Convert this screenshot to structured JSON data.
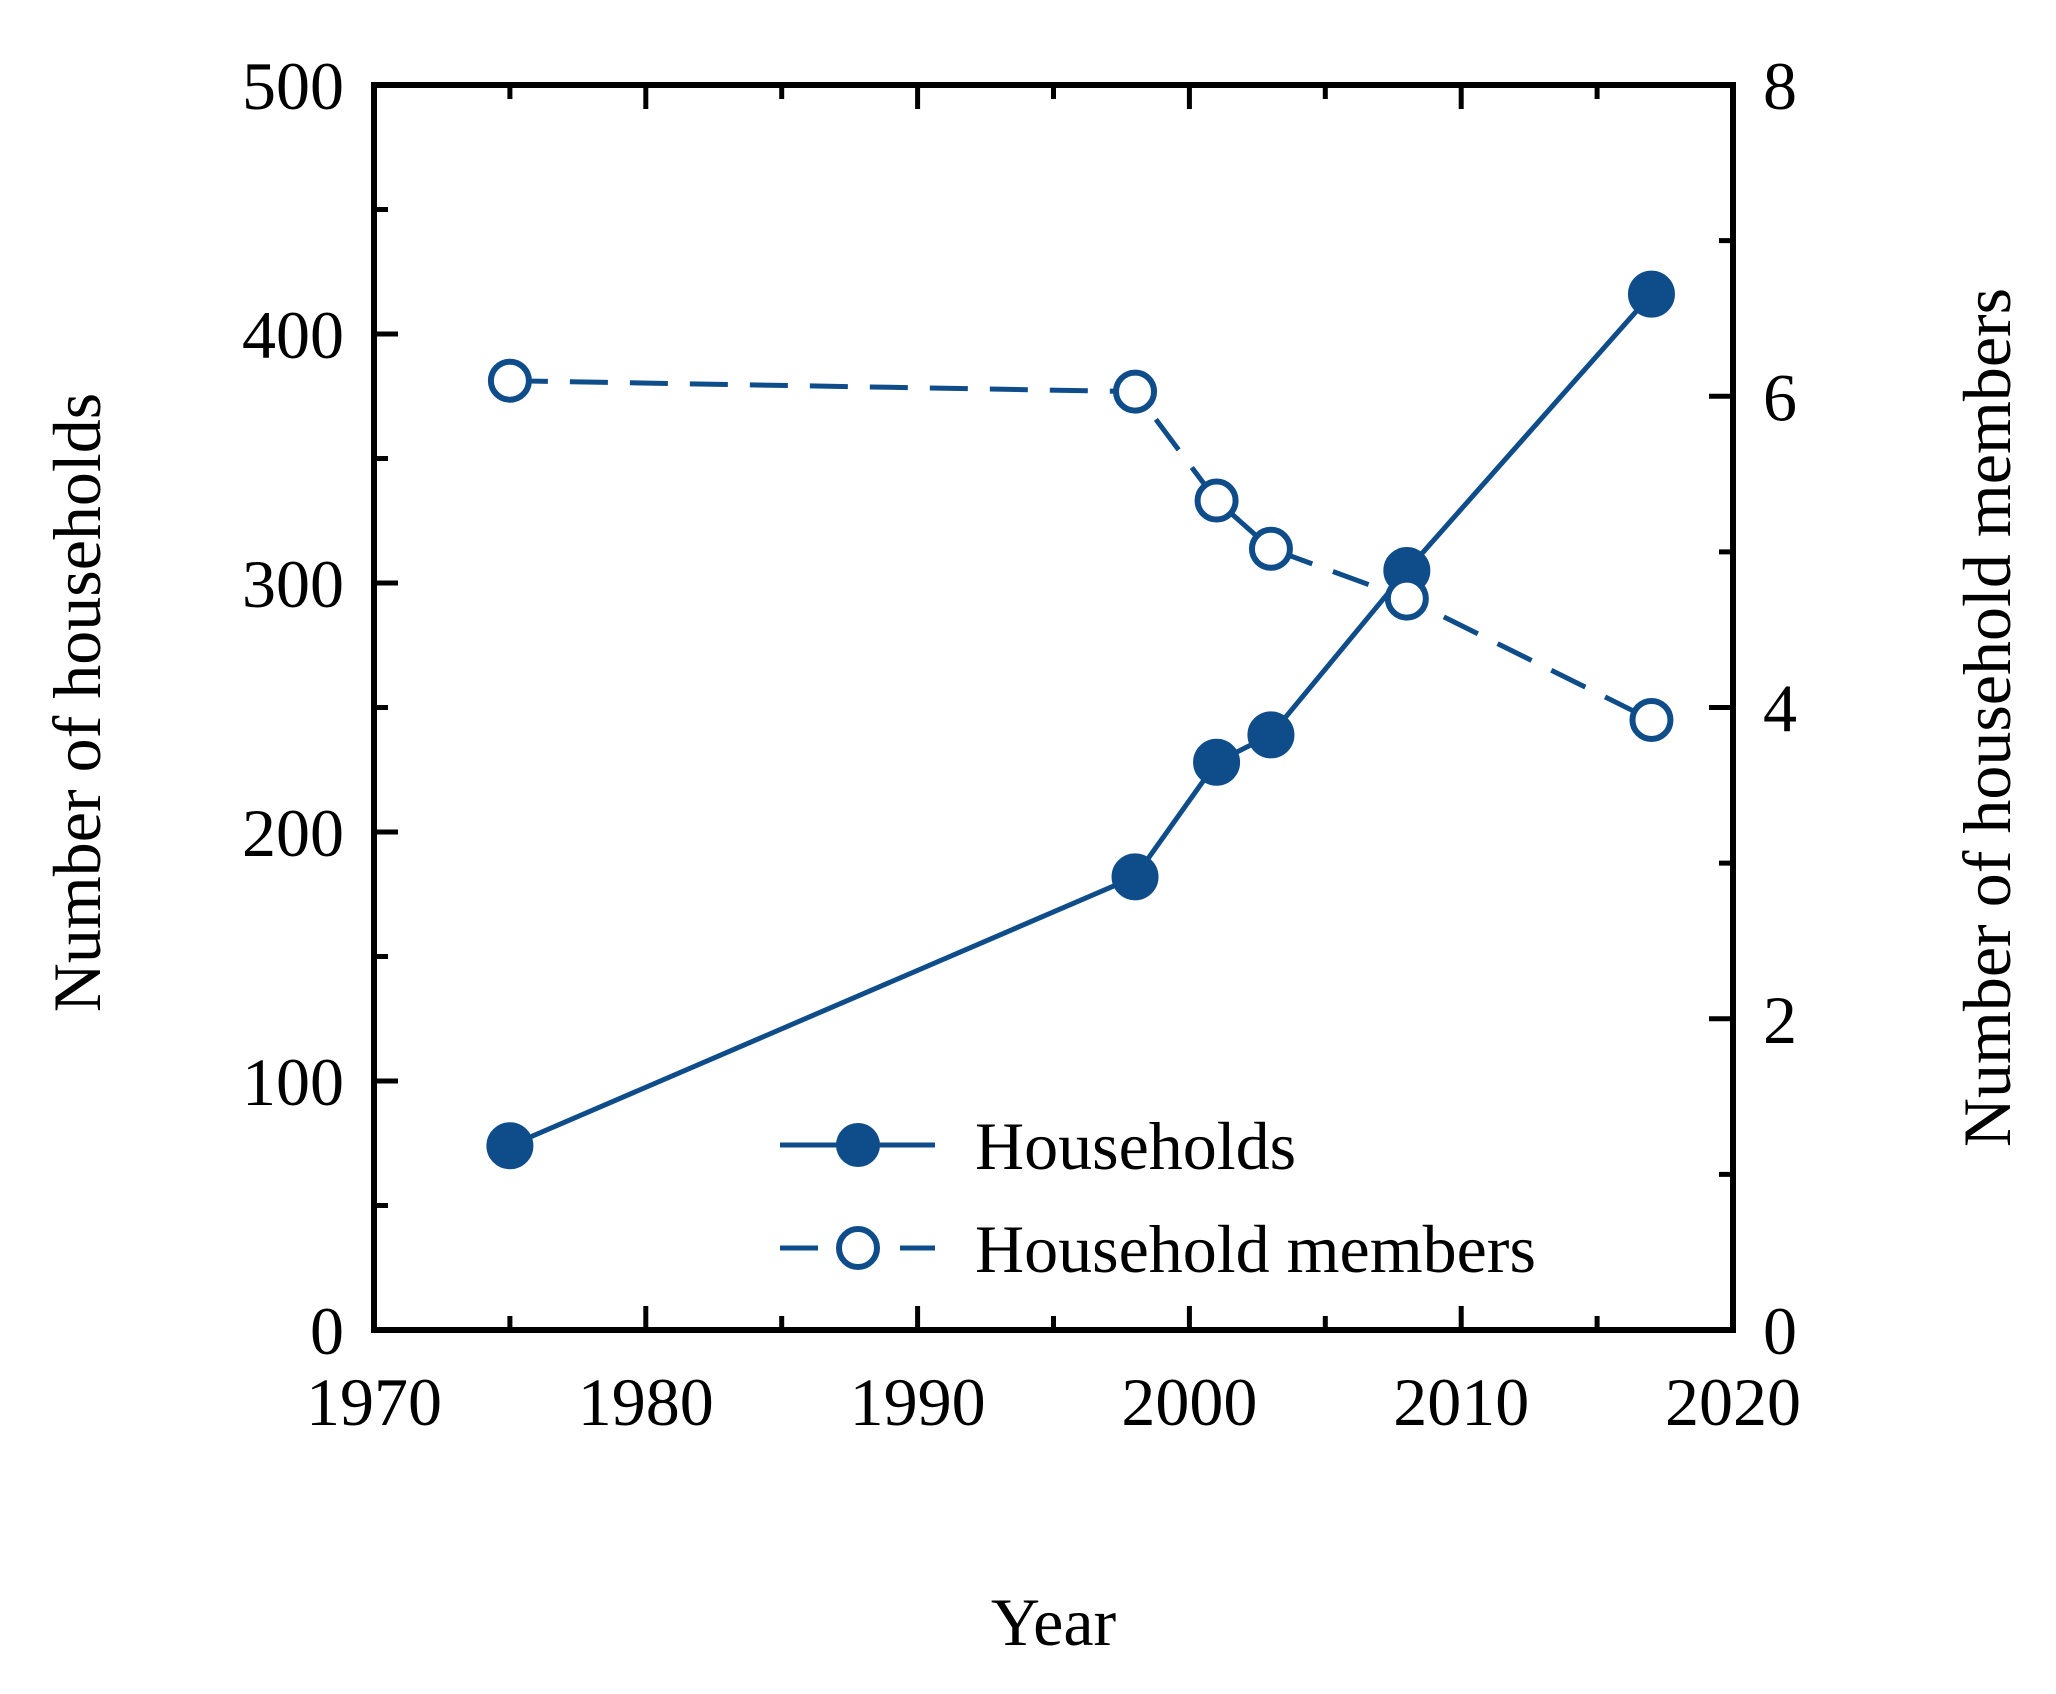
{
  "chart_data": {
    "type": "line",
    "title": "",
    "xlabel": "Year",
    "ylabel": "Number of households",
    "y2label": "Number of household members",
    "xlim": [
      1970,
      2020
    ],
    "ylim": [
      0,
      500
    ],
    "y2lim": [
      0,
      8
    ],
    "xticks": [
      1970,
      1980,
      1990,
      2000,
      2010,
      2020
    ],
    "yticks": [
      0,
      100,
      200,
      300,
      400,
      500
    ],
    "y2ticks": [
      0,
      2,
      4,
      6,
      8
    ],
    "grid": false,
    "legend_position": "bottom-right",
    "series": [
      {
        "name": "Households",
        "axis": "left",
        "style": "solid",
        "marker": "filled-circle",
        "x": [
          1975,
          1998,
          2001,
          2003,
          2008,
          2017
        ],
        "values": [
          74,
          182,
          228,
          239,
          305,
          416
        ]
      },
      {
        "name": "Household members",
        "axis": "right",
        "style": "dashed",
        "marker": "open-circle",
        "x": [
          1975,
          1998,
          2001,
          2003,
          2008,
          2017
        ],
        "values": [
          6.1,
          6.03,
          5.33,
          5.02,
          4.7,
          3.92
        ]
      }
    ],
    "colors": {
      "series": "#0f4c8a",
      "axis": "#000000"
    }
  }
}
